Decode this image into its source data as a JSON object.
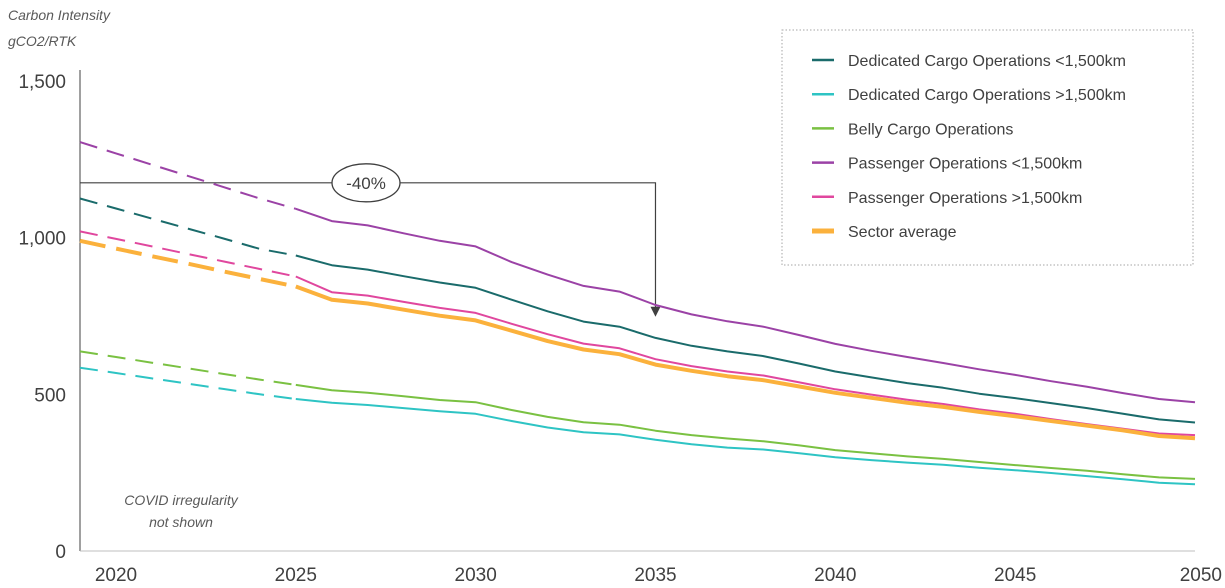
{
  "chart_data": {
    "type": "line",
    "ylabel": [
      "Carbon Intensity",
      "gCO2/RTK"
    ],
    "xlim": [
      2019,
      2050
    ],
    "ylim": [
      0,
      1500
    ],
    "xticks": [
      2020,
      2025,
      2030,
      2035,
      2040,
      2045,
      2050
    ],
    "yticks": [
      0,
      500,
      1000
    ],
    "ytick_labels": [
      "0",
      "500",
      "1,000",
      "1,500"
    ],
    "ytick_values": [
      0,
      500,
      1000,
      1500
    ],
    "x": [
      2019,
      2020,
      2021,
      2022,
      2023,
      2024,
      2025,
      2026,
      2027,
      2028,
      2029,
      2030,
      2031,
      2032,
      2033,
      2034,
      2035,
      2036,
      2037,
      2038,
      2039,
      2040,
      2041,
      2042,
      2043,
      2044,
      2045,
      2046,
      2047,
      2048,
      2049,
      2050
    ],
    "dashed_until": 2025,
    "note": [
      "COVID irregularity",
      "not shown"
    ],
    "series": [
      {
        "name": "Dedicated Cargo Operations <1,500km",
        "color": "#1a6b6b",
        "width": 2,
        "values": [
          1125,
          1093,
          1061,
          1029,
          997,
          964,
          943,
          912,
          898,
          877,
          857,
          840,
          802,
          765,
          732,
          716,
          680,
          655,
          637,
          622,
          598,
          573,
          554,
          536,
          521,
          502,
          488,
          472,
          456,
          438,
          420,
          410
        ]
      },
      {
        "name": "Dedicated Cargo Operations >1,500km",
        "color": "#2ec4c4",
        "width": 2,
        "values": [
          585,
          568,
          551,
          534,
          517,
          500,
          485,
          473,
          466,
          456,
          446,
          438,
          415,
          394,
          379,
          372,
          355,
          341,
          330,
          324,
          312,
          299,
          290,
          282,
          275,
          266,
          258,
          249,
          239,
          229,
          218,
          213
        ]
      },
      {
        "name": "Belly Cargo Operations",
        "color": "#7ac142",
        "width": 2,
        "values": [
          637,
          619,
          601,
          583,
          565,
          547,
          530,
          513,
          505,
          494,
          482,
          475,
          450,
          428,
          411,
          403,
          384,
          370,
          359,
          350,
          337,
          322,
          312,
          302,
          294,
          284,
          274,
          265,
          256,
          245,
          235,
          230
        ]
      },
      {
        "name": "Passenger Operations <1,500km",
        "color": "#9b42a6",
        "width": 2,
        "values": [
          1305,
          1269,
          1233,
          1197,
          1161,
          1125,
          1092,
          1053,
          1039,
          1014,
          990,
          972,
          922,
          882,
          846,
          828,
          785,
          755,
          733,
          716,
          689,
          661,
          639,
          619,
          600,
          580,
          562,
          542,
          524,
          504,
          485,
          475
        ]
      },
      {
        "name": "Passenger Operations >1,500km",
        "color": "#e0479e",
        "width": 2,
        "values": [
          1020,
          996,
          972,
          948,
          924,
          900,
          876,
          826,
          815,
          795,
          776,
          760,
          725,
          692,
          662,
          647,
          612,
          590,
          573,
          560,
          538,
          516,
          499,
          483,
          469,
          452,
          438,
          421,
          405,
          390,
          375,
          370
        ]
      },
      {
        "name": "Sector average",
        "color": "#fbb13c",
        "width": 4,
        "values": [
          990,
          965,
          941,
          917,
          892,
          868,
          844,
          802,
          790,
          770,
          751,
          736,
          703,
          670,
          643,
          628,
          595,
          575,
          558,
          545,
          525,
          505,
          489,
          473,
          460,
          444,
          430,
          415,
          400,
          385,
          367,
          360
        ]
      }
    ],
    "annotation": {
      "label": "-40%",
      "from_year": 2019,
      "level": 1175,
      "to_year": 2035,
      "to_value": 690
    },
    "legend_position": "top-right"
  }
}
